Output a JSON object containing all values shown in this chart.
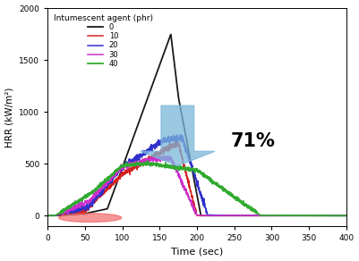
{
  "title": "",
  "xlabel": "Time (sec)",
  "ylabel": "HRR (kW/m²)",
  "xlim": [
    0,
    400
  ],
  "ylim": [
    -100,
    2000
  ],
  "yticks": [
    0,
    500,
    1000,
    1500,
    2000
  ],
  "xticks": [
    0,
    50,
    100,
    150,
    200,
    250,
    300,
    350,
    400
  ],
  "legend_title": "Intumescent agent (phr)",
  "legend_labels": [
    "0",
    "10",
    "20",
    "30",
    "40"
  ],
  "line_colors": [
    "#1a1a1a",
    "#d42020",
    "#3030cc",
    "#cc30cc",
    "#30aa30"
  ],
  "background_color": "#ffffff",
  "arrow_color": "#7ab8d9",
  "circle_color": "#f06060",
  "pct_text": "71%"
}
